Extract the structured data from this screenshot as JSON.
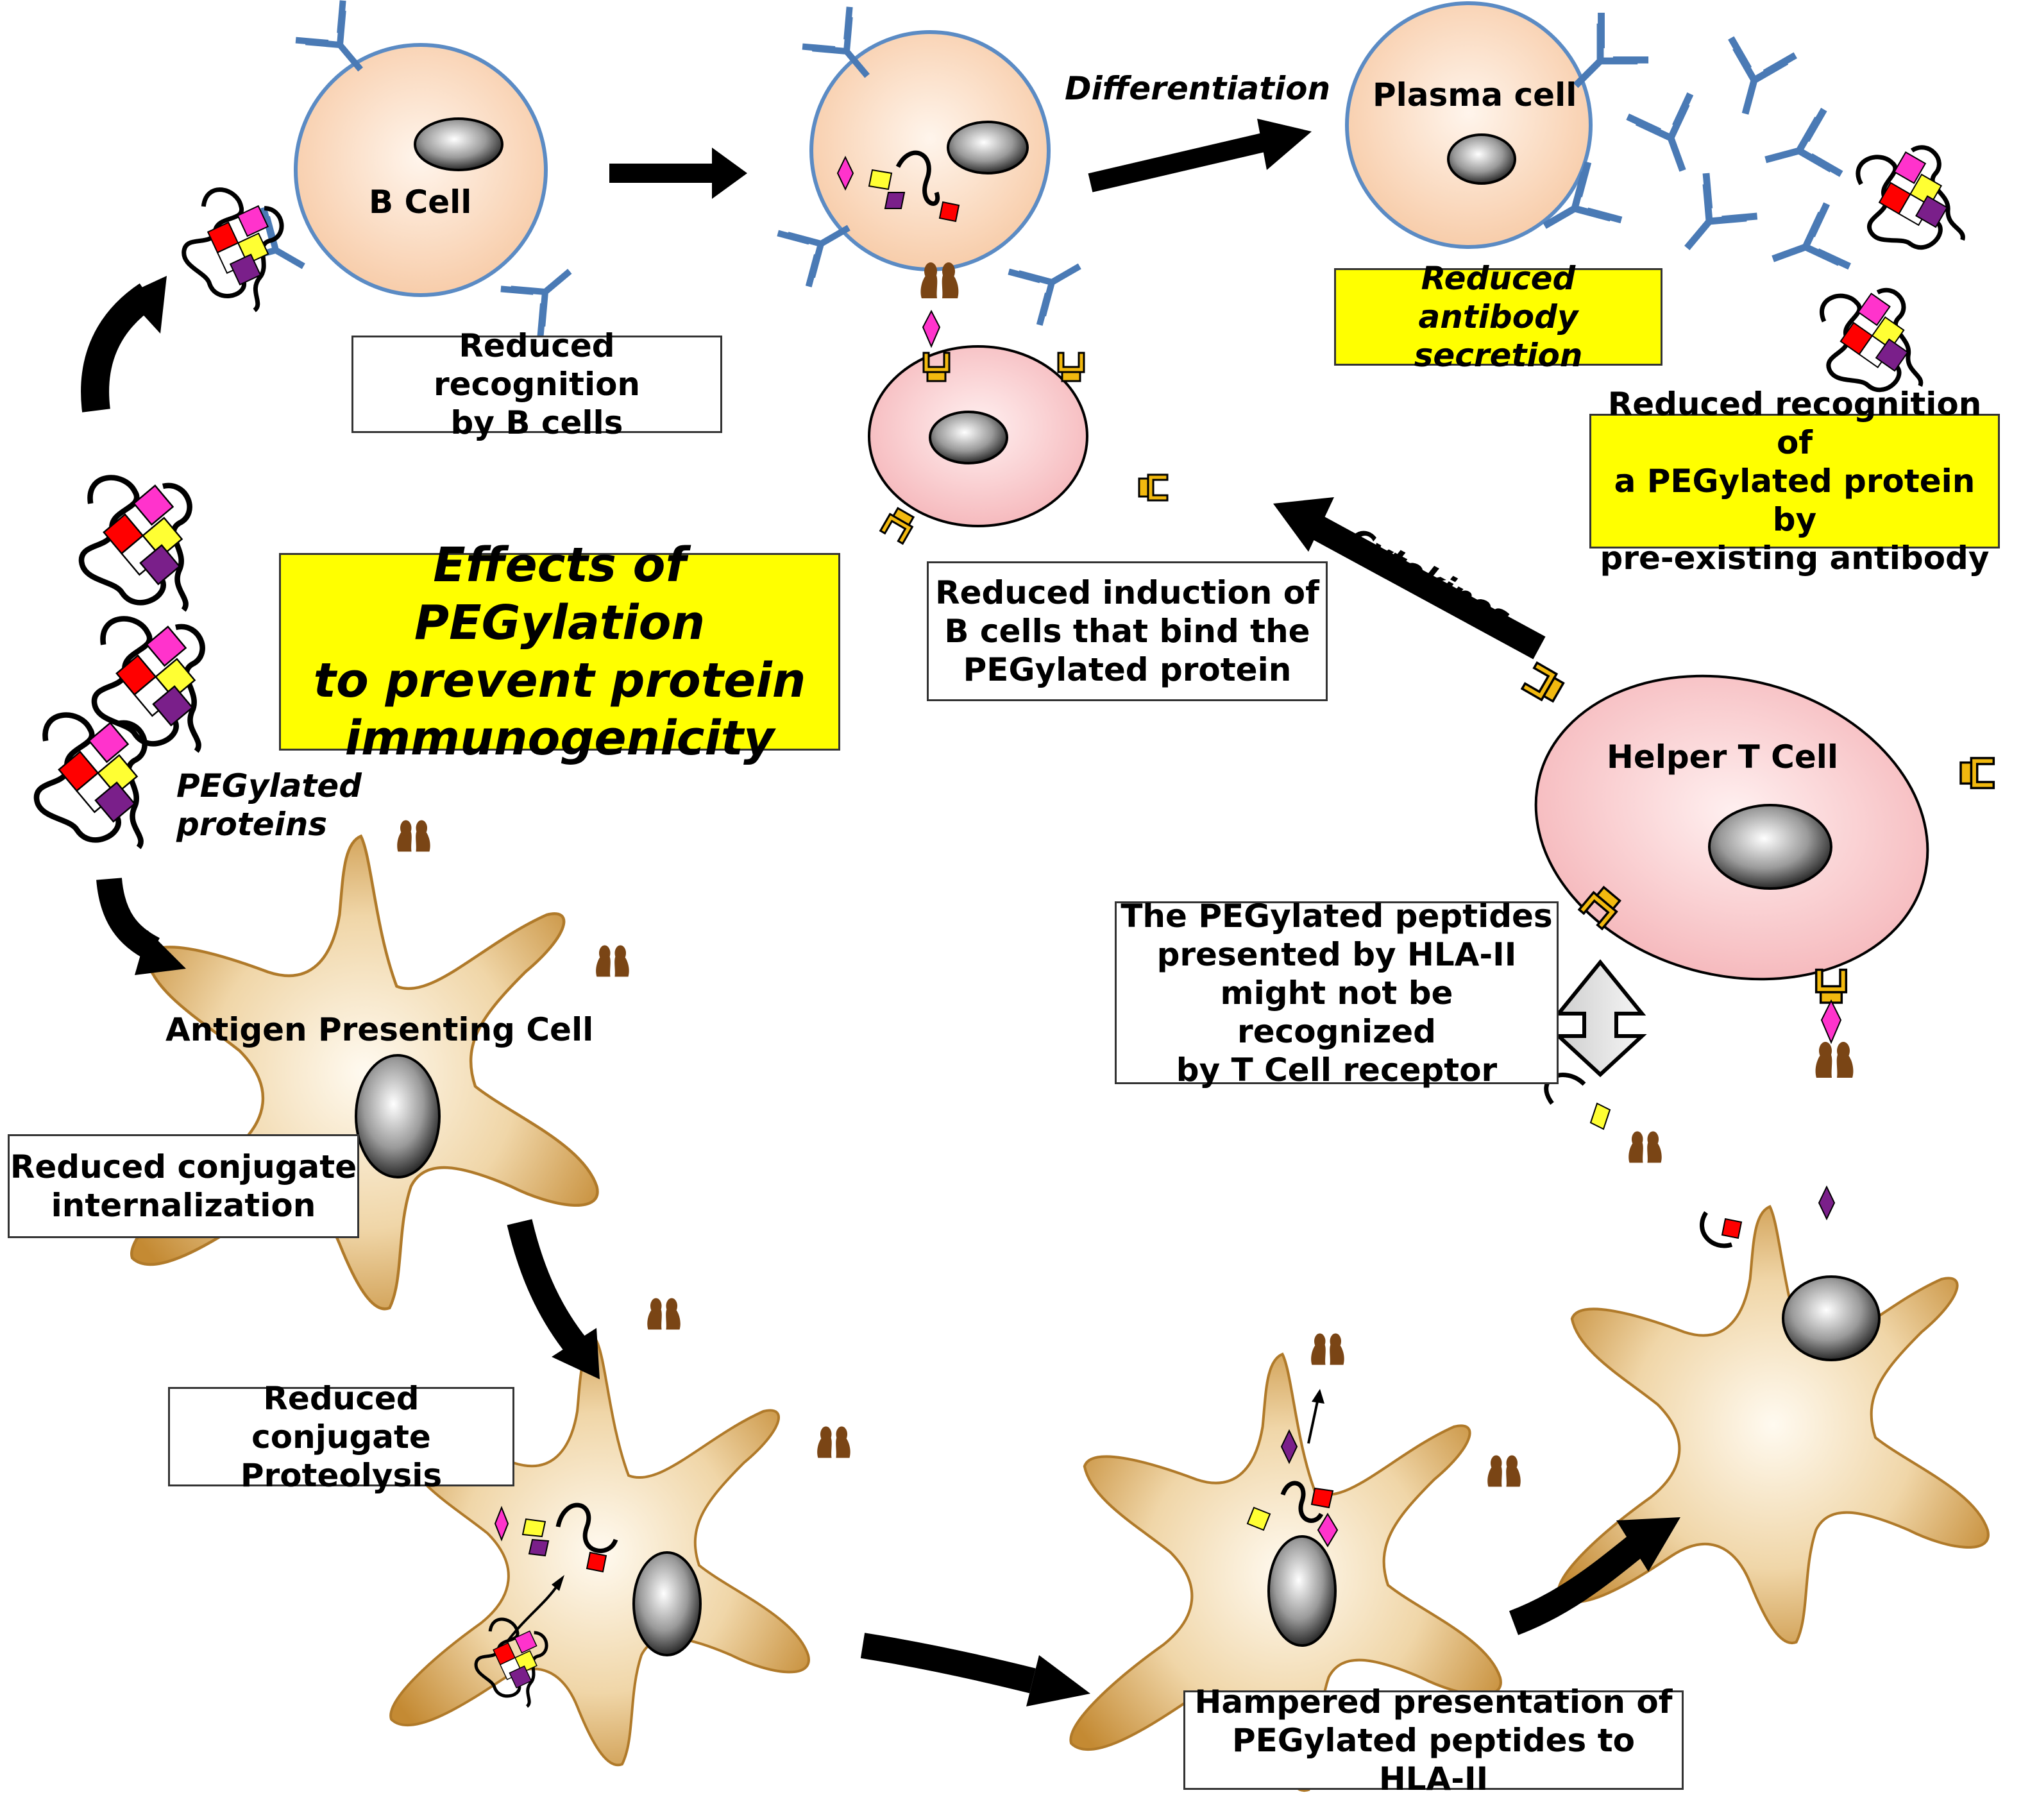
{
  "title": "Effects of PEGylation\nto prevent protein\nimmunogenicity",
  "labels": {
    "b_cell": "B Cell",
    "plasma_cell": "Plasma cell",
    "helper_t_cell": "Helper T Cell",
    "apc": "Antigen Presenting Cell",
    "pegylated_proteins": "PEGylated\nproteins",
    "differentiation": "Differentiation",
    "cytokines": "Cytokines"
  },
  "boxes": {
    "reduced_recognition_b": "Reduced recognition\nby B cells",
    "reduced_antibody_secretion": "Reduced antibody\nsecretion",
    "reduced_recognition_antibody": "Reduced recognition of\na PEGylated protein by\npre-existing antibody",
    "reduced_induction": "Reduced induction of\nB cells that bind the\nPEGylated protein",
    "tcr_not_recognized": "The PEGylated peptides\npresented by HLA-II\nmight not be recognized\nby T Cell receptor",
    "reduced_internalization": "Reduced conjugate\ninternalization",
    "reduced_proteolysis": "Reduced conjugate\nProteolysis",
    "hampered_presentation": "Hampered presentation of\nPEGylated peptides to HLA-II"
  },
  "colors": {
    "b_cell_fill": "#fcd5b8",
    "t_cell_fill": "#f9c8c8",
    "apc_fill": "#d9a655",
    "antibody": "#4a7ab5",
    "receptor": "#f2b90f",
    "mhc": "#7a4515",
    "highlight": "#ffff00",
    "pink": "#ff33cc",
    "red": "#ff0000",
    "yellow_frag": "#ffff33",
    "purple": "#7a1f8a"
  }
}
